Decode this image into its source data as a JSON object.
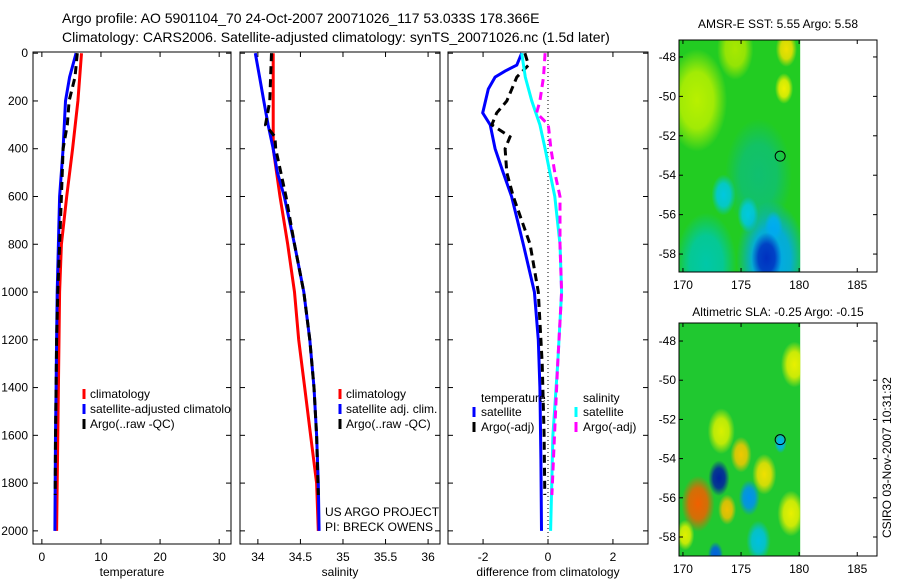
{
  "title": {
    "line1": "Argo profile: AO 5901104_70 24-Oct-2007 20071026_117 53.033S 178.366E",
    "line2": "Climatology: CARS2006. Satellite-adjusted climatology: synTS_20071026.nc (1.5d later)"
  },
  "credits": {
    "project": "US ARGO PROJECT",
    "pi": "PI: BRECK OWENS",
    "stamp": "CSIRO 03-Nov-2007 10:31:32"
  },
  "colors": {
    "climatology": "#ff0000",
    "satellite": "#0000ff",
    "argo": "#000000",
    "sal_satellite": "#00ffff",
    "sal_argo": "#ff00ff"
  },
  "chart_data": [
    {
      "type": "line",
      "xlabel": "temperature",
      "ylabel": "",
      "xlim": [
        -1.5,
        32
      ],
      "ylim": [
        2055,
        -5
      ],
      "xticks": [
        "0",
        "10",
        "20",
        "30"
      ],
      "yticks": [
        "0",
        "200",
        "400",
        "600",
        "800",
        "1000",
        "1200",
        "1400",
        "1600",
        "1800",
        "2000"
      ],
      "legend": [
        "climatology",
        "satellite-adjusted climatology",
        "Argo(..raw -QC)"
      ],
      "series": [
        {
          "name": "climatology",
          "color": "#ff0000",
          "dash": false,
          "points": [
            [
              6.7,
              0
            ],
            [
              6.1,
              200
            ],
            [
              5.2,
              400
            ],
            [
              4.2,
              600
            ],
            [
              3.3,
              800
            ],
            [
              3.0,
              1000
            ],
            [
              2.9,
              1200
            ],
            [
              2.8,
              1400
            ],
            [
              2.7,
              1600
            ],
            [
              2.6,
              1800
            ],
            [
              2.5,
              2000
            ]
          ]
        },
        {
          "name": "satellite-adjusted climatology",
          "color": "#0000ff",
          "dash": false,
          "points": [
            [
              5.8,
              0
            ],
            [
              4.7,
              100
            ],
            [
              4.0,
              200
            ],
            [
              3.6,
              400
            ],
            [
              3.0,
              600
            ],
            [
              2.8,
              800
            ],
            [
              2.6,
              1000
            ],
            [
              2.5,
              1200
            ],
            [
              2.4,
              1400
            ],
            [
              2.3,
              1600
            ],
            [
              2.25,
              1800
            ],
            [
              2.2,
              2000
            ]
          ]
        },
        {
          "name": "Argo(..raw -QC)",
          "color": "#000000",
          "dash": true,
          "points": [
            [
              6.0,
              0
            ],
            [
              5.6,
              100
            ],
            [
              4.6,
              200
            ],
            [
              4.3,
              300
            ],
            [
              3.6,
              400
            ],
            [
              3.3,
              600
            ],
            [
              3.0,
              800
            ],
            [
              2.7,
              1000
            ],
            [
              2.5,
              1200
            ],
            [
              2.4,
              1400
            ],
            [
              2.3,
              1600
            ],
            [
              2.25,
              1850
            ]
          ]
        }
      ]
    },
    {
      "type": "line",
      "xlabel": "salinity",
      "xlim": [
        33.79,
        36.14
      ],
      "ylim": [
        2055,
        -5
      ],
      "xticks": [
        "34",
        "34.5",
        "35",
        "35.5",
        "36"
      ],
      "legend": [
        "climatology",
        "satellite adj. clim.",
        "Argo(..raw -QC)"
      ],
      "series": [
        {
          "name": "climatology",
          "color": "#ff0000",
          "dash": false,
          "points": [
            [
              34.18,
              0
            ],
            [
              34.18,
              400
            ],
            [
              34.22,
              500
            ],
            [
              34.26,
              600
            ],
            [
              34.35,
              800
            ],
            [
              34.43,
              1000
            ],
            [
              34.48,
              1200
            ],
            [
              34.55,
              1400
            ],
            [
              34.62,
              1600
            ],
            [
              34.69,
              1800
            ],
            [
              34.71,
              2000
            ]
          ]
        },
        {
          "name": "satellite adj. clim.",
          "color": "#0000ff",
          "dash": false,
          "points": [
            [
              33.97,
              0
            ],
            [
              34.02,
              100
            ],
            [
              34.07,
              200
            ],
            [
              34.12,
              300
            ],
            [
              34.18,
              400
            ],
            [
              34.23,
              500
            ],
            [
              34.31,
              600
            ],
            [
              34.43,
              800
            ],
            [
              34.54,
              1000
            ],
            [
              34.61,
              1200
            ],
            [
              34.66,
              1400
            ],
            [
              34.69,
              1600
            ],
            [
              34.71,
              1800
            ],
            [
              34.72,
              2000
            ]
          ]
        },
        {
          "name": "Argo(..raw -QC)",
          "color": "#000000",
          "dash": true,
          "points": [
            [
              34.16,
              0
            ],
            [
              34.15,
              100
            ],
            [
              34.14,
              200
            ],
            [
              34.09,
              300
            ],
            [
              34.2,
              350
            ],
            [
              34.21,
              400
            ],
            [
              34.33,
              600
            ],
            [
              34.43,
              800
            ],
            [
              34.54,
              1000
            ],
            [
              34.61,
              1200
            ],
            [
              34.66,
              1400
            ],
            [
              34.69,
              1600
            ],
            [
              34.71,
              1850
            ]
          ]
        }
      ]
    },
    {
      "type": "line",
      "xlabel": "difference from climatology",
      "xlim": [
        -3.08,
        3.08
      ],
      "ylim": [
        2055,
        -5
      ],
      "xticks": [
        "-2",
        "0",
        "2"
      ],
      "legend_temperature": {
        "title": "temperature",
        "items": [
          "satellite",
          "Argo(-adj)"
        ]
      },
      "legend_salinity": {
        "title": "salinity",
        "items": [
          "satellite",
          "Argo(-adj)"
        ]
      },
      "series": [
        {
          "name": "temperature satellite",
          "color": "#0000ff",
          "dash": false,
          "points": [
            [
              -0.81,
              0
            ],
            [
              -0.96,
              50
            ],
            [
              -1.32,
              75
            ],
            [
              -1.63,
              100
            ],
            [
              -1.84,
              150
            ],
            [
              -2.01,
              250
            ],
            [
              -1.78,
              300
            ],
            [
              -1.63,
              400
            ],
            [
              -1.38,
              500
            ],
            [
              -1.12,
              600
            ],
            [
              -0.76,
              800
            ],
            [
              -0.42,
              1000
            ],
            [
              -0.3,
              1200
            ],
            [
              -0.25,
              1400
            ],
            [
              -0.22,
              1700
            ],
            [
              -0.2,
              2000
            ]
          ]
        },
        {
          "name": "temperature Argo(-adj)",
          "color": "#000000",
          "dash": true,
          "points": [
            [
              -0.71,
              0
            ],
            [
              -0.6,
              50
            ],
            [
              -0.96,
              100
            ],
            [
              -1.27,
              200
            ],
            [
              -1.58,
              250
            ],
            [
              -1.73,
              300
            ],
            [
              -1.17,
              350
            ],
            [
              -1.32,
              400
            ],
            [
              -1.27,
              500
            ],
            [
              -1.07,
              600
            ],
            [
              -0.55,
              800
            ],
            [
              -0.3,
              1000
            ],
            [
              -0.18,
              1300
            ],
            [
              -0.12,
              1600
            ],
            [
              -0.1,
              1850
            ]
          ]
        },
        {
          "name": "salinity satellite",
          "color": "#00ffff",
          "dash": false,
          "points": [
            [
              -0.81,
              0
            ],
            [
              -0.7,
              100
            ],
            [
              -0.5,
              200
            ],
            [
              -0.25,
              300
            ],
            [
              -0.09,
              400
            ],
            [
              0.06,
              500
            ],
            [
              0.21,
              600
            ],
            [
              0.37,
              800
            ],
            [
              0.42,
              1000
            ],
            [
              0.3,
              1300
            ],
            [
              0.15,
              1600
            ],
            [
              0.08,
              2000
            ]
          ]
        },
        {
          "name": "salinity Argo(-adj)",
          "color": "#ff00ff",
          "dash": true,
          "points": [
            [
              -0.09,
              0
            ],
            [
              -0.14,
              100
            ],
            [
              -0.25,
              200
            ],
            [
              -0.35,
              250
            ],
            [
              0.01,
              300
            ],
            [
              0.09,
              400
            ],
            [
              0.21,
              500
            ],
            [
              0.37,
              600
            ],
            [
              0.37,
              800
            ],
            [
              0.42,
              1000
            ],
            [
              0.3,
              1300
            ],
            [
              0.2,
              1600
            ],
            [
              0.12,
              1850
            ]
          ]
        }
      ]
    },
    {
      "type": "heatmap",
      "title": "AMSR-E SST: 5.55 Argo: 5.58",
      "xlim": [
        169.66,
        186.7
      ],
      "ylim": [
        -47.14,
        -58.91
      ],
      "data_lon_max": 180.1,
      "xticks": [
        "170",
        "175",
        "180",
        "185"
      ],
      "yticks": [
        "-48",
        "-50",
        "-52",
        "-54",
        "-56",
        "-58"
      ],
      "background": "#22cc22",
      "argo_position": [
        178.366,
        -53.033
      ],
      "blobs": [
        {
          "lon": 171.2,
          "lat": -50.2,
          "r": 2.0,
          "color": "#b8f000"
        },
        {
          "lon": 174.5,
          "lat": -47.6,
          "r": 1.2,
          "color": "#a8e800"
        },
        {
          "lon": 178.9,
          "lat": -47.6,
          "r": 0.7,
          "color": "#f0e000"
        },
        {
          "lon": 178.7,
          "lat": -49.6,
          "r": 0.6,
          "color": "#f0f000"
        },
        {
          "lon": 176.5,
          "lat": -54.0,
          "r": 2.2,
          "color": "#10c070"
        },
        {
          "lon": 173.5,
          "lat": -55.0,
          "r": 0.8,
          "color": "#00c8e0"
        },
        {
          "lon": 175.6,
          "lat": -56.0,
          "r": 0.7,
          "color": "#00c8e0"
        },
        {
          "lon": 177.8,
          "lat": -56.6,
          "r": 0.6,
          "color": "#00b8f0"
        },
        {
          "lon": 172.0,
          "lat": -58.5,
          "r": 2.0,
          "color": "#00c8a8"
        },
        {
          "lon": 177.6,
          "lat": -58.3,
          "r": 2.3,
          "color": "#00a8f0"
        },
        {
          "lon": 177.2,
          "lat": -58.2,
          "r": 1.0,
          "color": "#0030c0"
        }
      ]
    },
    {
      "type": "heatmap",
      "title": "Altimetric SLA: -0.25 Argo: -0.15",
      "xlim": [
        169.66,
        186.7
      ],
      "ylim": [
        -47.08,
        -58.97
      ],
      "data_lon_max": 180.1,
      "xticks": [
        "170",
        "175",
        "180",
        "185"
      ],
      "yticks": [
        "-48",
        "-50",
        "-52",
        "-54",
        "-56",
        "-58"
      ],
      "background": "#20c830",
      "argo_position": [
        178.366,
        -53.033
      ],
      "blobs": [
        {
          "lon": 179.6,
          "lat": -49.2,
          "r": 0.9,
          "color": "#e8f000"
        },
        {
          "lon": 173.3,
          "lat": -52.6,
          "r": 0.9,
          "color": "#d8f000"
        },
        {
          "lon": 175.0,
          "lat": -53.8,
          "r": 0.7,
          "color": "#f0c800"
        },
        {
          "lon": 177.0,
          "lat": -54.8,
          "r": 0.8,
          "color": "#f0e000"
        },
        {
          "lon": 171.3,
          "lat": -56.3,
          "r": 1.1,
          "color": "#f06000"
        },
        {
          "lon": 173.8,
          "lat": -56.6,
          "r": 0.6,
          "color": "#f0c000"
        },
        {
          "lon": 179.3,
          "lat": -56.8,
          "r": 0.9,
          "color": "#e8f000"
        },
        {
          "lon": 170.2,
          "lat": -57.9,
          "r": 0.6,
          "color": "#e0f000"
        },
        {
          "lon": 173.1,
          "lat": -55.0,
          "r": 0.7,
          "color": "#0020a0"
        },
        {
          "lon": 175.7,
          "lat": -56.0,
          "r": 0.7,
          "color": "#0090f0"
        },
        {
          "lon": 178.4,
          "lat": -53.2,
          "r": 0.4,
          "color": "#00b0f0"
        },
        {
          "lon": 176.5,
          "lat": -58.2,
          "r": 0.8,
          "color": "#00c0e0"
        },
        {
          "lon": 172.8,
          "lat": -58.9,
          "r": 0.5,
          "color": "#0060e0"
        }
      ]
    }
  ]
}
